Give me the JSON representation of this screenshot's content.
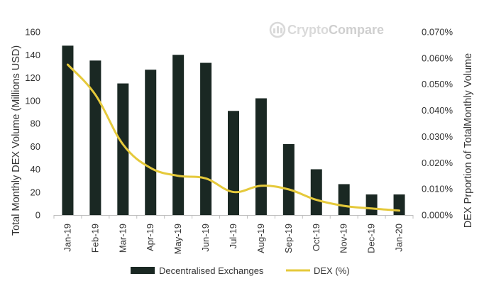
{
  "chart_data": {
    "type": "bar",
    "categories": [
      "Jan-19",
      "Feb-19",
      "Mar-19",
      "Apr-19",
      "May-19",
      "Jun-19",
      "Jul-19",
      "Aug-19",
      "Sep-19",
      "Oct-19",
      "Nov-19",
      "Dec-19",
      "Jan-20"
    ],
    "series": [
      {
        "name": "Decentralised Exchanges",
        "type": "bar",
        "axis": "left",
        "color": "#1a2823",
        "values": [
          148,
          135,
          115,
          127,
          140,
          133,
          91,
          102,
          62,
          40,
          27,
          18,
          18
        ]
      },
      {
        "name": "DEX (%)",
        "type": "line",
        "axis": "right",
        "color": "#e5c93b",
        "values": [
          0.0575,
          0.046,
          0.027,
          0.018,
          0.015,
          0.014,
          0.0088,
          0.0112,
          0.0098,
          0.0058,
          0.0035,
          0.0025,
          0.0017
        ]
      }
    ],
    "ylabel": "Total Monthly DEX Volume (Millions USD)",
    "y2label": "DEX Prportion of TotalMonthly  Volume",
    "ylim": [
      0,
      160
    ],
    "y2lim": [
      0,
      0.07
    ],
    "yticks": [
      "0",
      "20",
      "40",
      "60",
      "80",
      "100",
      "120",
      "140",
      "160"
    ],
    "y2ticks": [
      "0.000%",
      "0.010%",
      "0.020%",
      "0.030%",
      "0.040%",
      "0.050%",
      "0.060%",
      "0.070%"
    ],
    "grid": false,
    "legend_position": "bottom"
  },
  "watermark": {
    "text_crypto": "Crypto",
    "text_compare": "Compare"
  }
}
